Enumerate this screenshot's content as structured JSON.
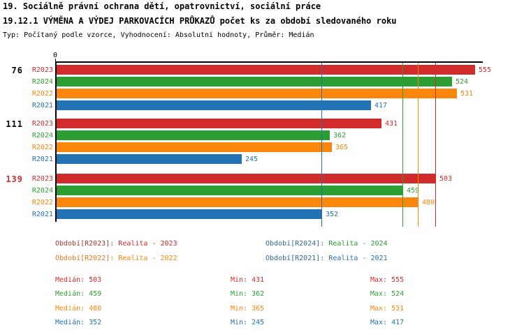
{
  "header": {
    "line1": "19. Sociálně právní ochrana dětí, opatrovnictví, sociální práce",
    "line2": "19.12.1 VÝMĚNA A VÝDEJ PARKOVACÍCH PRŮKAZŮ počet ks za období sledovaného roku",
    "meta": "Typ: Počítaný podle vzorce, Vyhodnocení: Absolutní hodnoty, Průměr: Medián"
  },
  "chart_data": {
    "type": "bar",
    "orientation": "horizontal",
    "title": "19.12.1 VÝMĚNA A VÝDEJ PARKOVACÍCH PRŮKAZŮ počet ks za období sledovaného roku",
    "x_axis": {
      "zero_label": "0",
      "min": 0,
      "max": 565,
      "grid": false
    },
    "series_order": [
      "R2023",
      "R2024",
      "R2022",
      "R2021"
    ],
    "series_colors": {
      "R2023": "#d22b2b",
      "R2024": "#2d9e33",
      "R2022": "#fb860c",
      "R2021": "#2373b5"
    },
    "groups": [
      {
        "label": "76",
        "label_color": "#000000",
        "values": {
          "R2023": 555,
          "R2024": 524,
          "R2022": 531,
          "R2021": 417
        }
      },
      {
        "label": "111",
        "label_color": "#000000",
        "values": {
          "R2023": 431,
          "R2024": 362,
          "R2022": 365,
          "R2021": 245
        }
      },
      {
        "label": "139",
        "label_color": "#d22b2b",
        "values": {
          "R2023": 503,
          "R2024": 459,
          "R2022": 480,
          "R2021": 352
        }
      }
    ],
    "median_lines": [
      {
        "series": "R2021",
        "value": 352,
        "color": "#2373b5"
      },
      {
        "series": "R2024",
        "value": 459,
        "color": "#2d9e33"
      },
      {
        "series": "R2022",
        "value": 480,
        "color": "#fb860c"
      },
      {
        "series": "R2023",
        "value": 503,
        "color": "#d22b2b"
      }
    ]
  },
  "legend": {
    "entries": [
      {
        "label": "Období[R2023]:",
        "value": "Realita - 2023",
        "label_color": "#a83832",
        "value_color": "#d22b2b"
      },
      {
        "label": "Období[R2024]:",
        "value": "Realita - 2024",
        "label_color": "#33688f",
        "value_color": "#2d9e33"
      },
      {
        "label": "Období[R2022]:",
        "value": "Realita - 2022",
        "label_color": "#e87a1a",
        "value_color": "#fb860c"
      },
      {
        "label": "Období[R2021]:",
        "value": "Realita - 2021",
        "label_color": "#33688f",
        "value_color": "#2373b5"
      }
    ]
  },
  "stats": {
    "columns": {
      "median": "Medián:",
      "min": "Min:",
      "max": "Max:"
    },
    "rows": [
      {
        "series": "R2023",
        "median": 503,
        "min": 431,
        "max": 555,
        "color": "#d22b2b"
      },
      {
        "series": "R2024",
        "median": 459,
        "min": 362,
        "max": 524,
        "color": "#2d9e33"
      },
      {
        "series": "R2022",
        "median": 480,
        "min": 365,
        "max": 531,
        "color": "#fb860c"
      },
      {
        "series": "R2021",
        "median": 352,
        "min": 245,
        "max": 417,
        "color": "#2373b5"
      }
    ]
  }
}
